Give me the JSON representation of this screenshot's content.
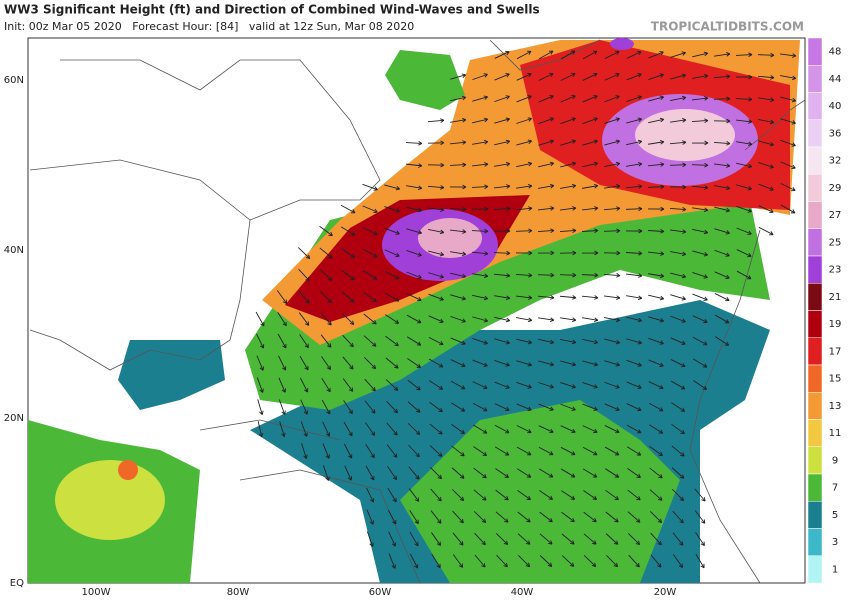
{
  "header": {
    "title": "WW3 Significant Height (ft) and Direction of Combined Wind-Waves and Swells",
    "subtitle": "Init: 00z Mar 05 2020   Forecast Hour: [84]   valid at 12z Sun, Mar 08 2020",
    "watermark": "TROPICALTIDBITS.COM"
  },
  "map": {
    "lat_labels": [
      "60N",
      "40N",
      "20N",
      "EQ"
    ],
    "lon_labels": [
      "100W",
      "80W",
      "60W",
      "40W",
      "20W"
    ]
  },
  "colorbar": {
    "levels": [
      48,
      44,
      40,
      36,
      32,
      29,
      27,
      25,
      23,
      21,
      19,
      17,
      15,
      13,
      11,
      9,
      7,
      5,
      3,
      1
    ],
    "colors": [
      "#c878e4",
      "#d494ea",
      "#e0b2f0",
      "#ecd0f4",
      "#f6e6f2",
      "#f2cada",
      "#e8a8c8",
      "#c070e0",
      "#a040d8",
      "#7a0a14",
      "#b00010",
      "#e02020",
      "#f06828",
      "#f49a34",
      "#f2c840",
      "#cce040",
      "#4cb838",
      "#1c7f8f",
      "#3cb8c8",
      "#b0f4f4"
    ]
  }
}
